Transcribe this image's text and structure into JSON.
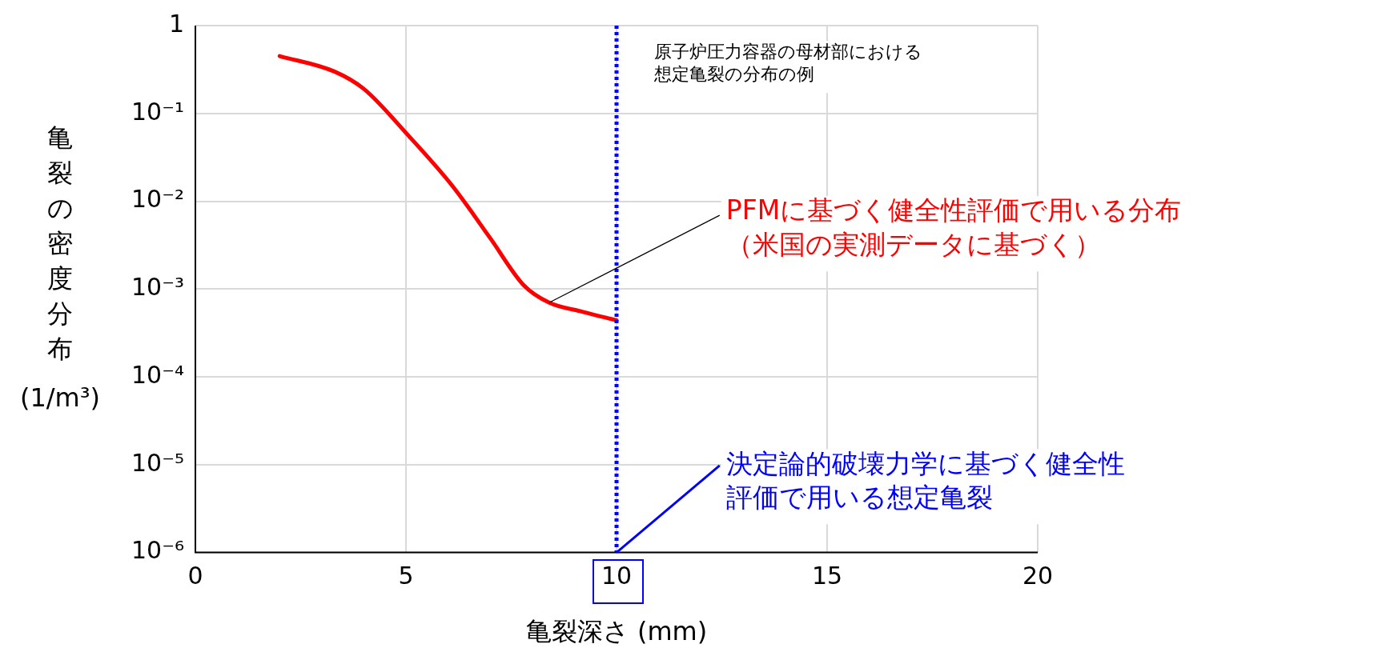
{
  "chart_data": {
    "type": "line",
    "xlabel": "亀裂深さ (mm)",
    "ylabel": "亀裂の密度分布 (1/m³)",
    "x": [
      2.0,
      3.3,
      4.0,
      5.0,
      6.1,
      7.0,
      7.8,
      8.4,
      9.2,
      10.0
    ],
    "series": [
      {
        "color": "#ff0000",
        "values": [
          0.45,
          0.3,
          0.19,
          0.06,
          0.015,
          0.0038,
          0.0011,
          0.0007,
          0.00055,
          0.00044
        ]
      }
    ],
    "xlim": [
      0,
      20
    ],
    "xticks": [
      0,
      5,
      10,
      15,
      20
    ],
    "ylim": [
      1e-06,
      1
    ],
    "yticks": [
      {
        "value": 1,
        "label": "1"
      },
      {
        "value": 0.1,
        "label": "10⁻¹"
      },
      {
        "value": 0.01,
        "label": "10⁻²"
      },
      {
        "value": 0.001,
        "label": "10⁻³"
      },
      {
        "value": 0.0001,
        "label": "10⁻⁴"
      },
      {
        "value": 1e-05,
        "label": "10⁻⁵"
      },
      {
        "value": 1e-06,
        "label": "10⁻⁶"
      }
    ],
    "log": "y",
    "grid": true,
    "legend": false,
    "marker": "none",
    "line_style": "solid",
    "ref_lines": [
      {
        "axis": "x",
        "value": 10,
        "color": "#0000ff",
        "line_style": "dotted"
      }
    ],
    "annotations": [
      "原子炉圧力容器の母材部における想定亀裂の分布の例",
      {
        "text": "PFMに基づく健全性評価で用いる分布（米国の実測データに基づく）",
        "x": 8.4,
        "y": 0.0007
      },
      {
        "text": "決定論的破壊力学に基づく健全性評価で用いる想定亀裂",
        "x": 10,
        "y": 1e-06
      }
    ]
  }
}
